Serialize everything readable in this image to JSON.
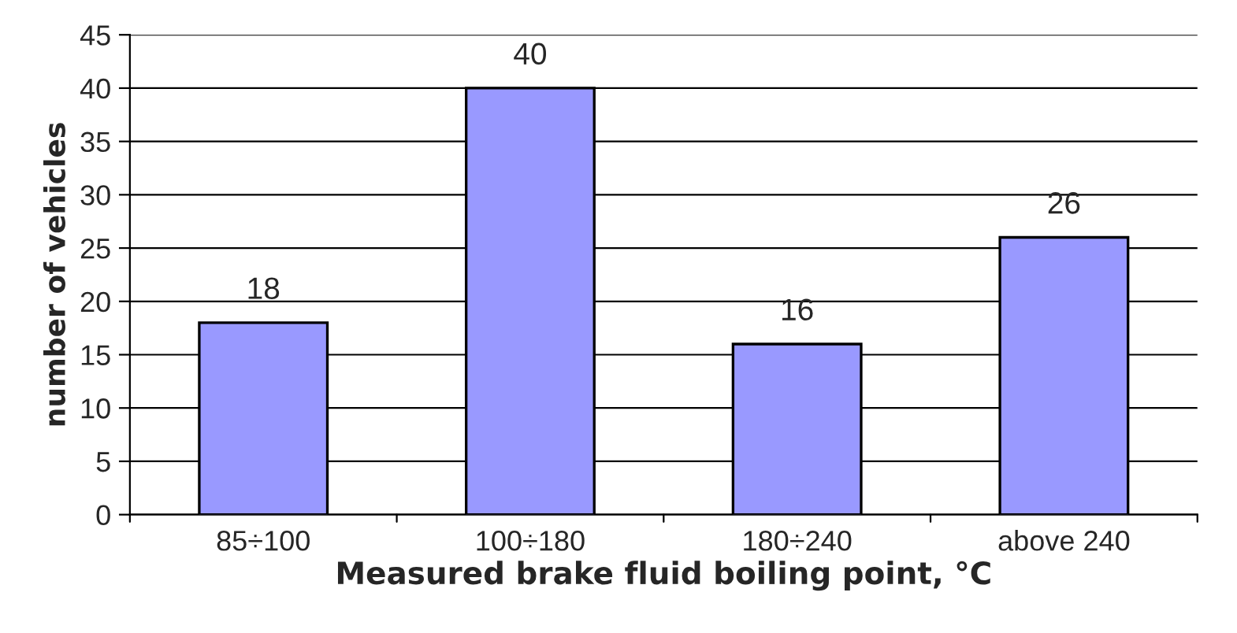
{
  "chart_data": {
    "type": "bar",
    "xlabel": "Measured brake fluid boiling point, °C",
    "ylabel": "number of vehicles",
    "categories": [
      "85÷100",
      "100÷180",
      "180÷240",
      "above 240"
    ],
    "values": [
      18,
      40,
      16,
      26
    ],
    "color": "#9999ff",
    "ylim": [
      0,
      45
    ],
    "yticks": [
      0,
      5,
      10,
      15,
      20,
      25,
      30,
      35,
      40,
      45
    ],
    "grid": "y",
    "data_labels": true
  }
}
